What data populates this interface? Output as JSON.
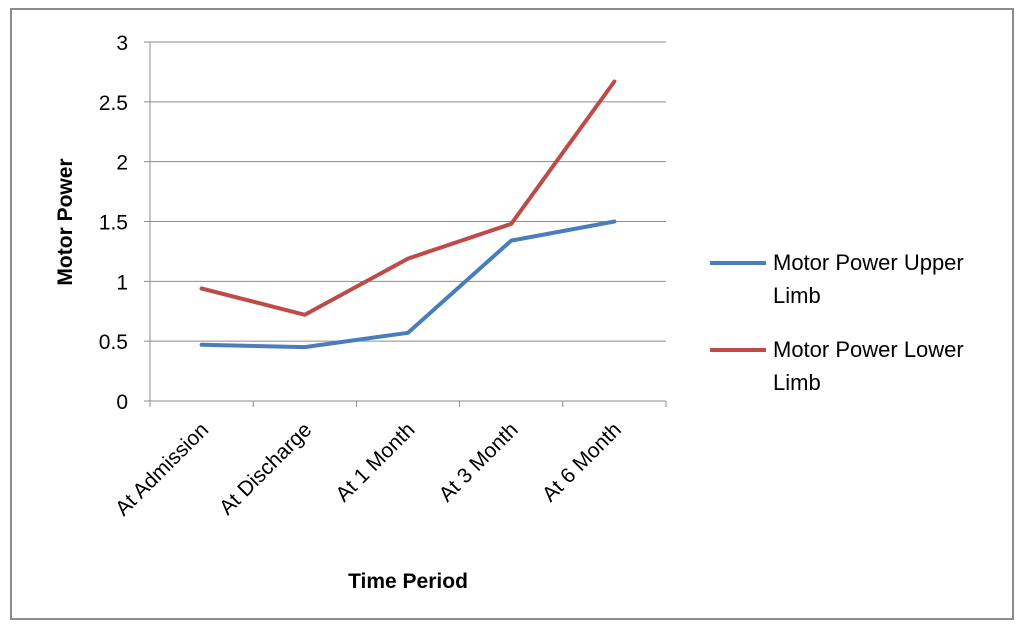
{
  "chart_data": {
    "type": "line",
    "categories": [
      "At Admission",
      "At Discharge",
      "At 1 Month",
      "At 3 Month",
      "At 6 Month"
    ],
    "series": [
      {
        "name": "Motor Power Upper Limb",
        "legend_lines": [
          "Motor Power Upper",
          "Limb"
        ],
        "color": "#4a7ebb",
        "values": [
          0.47,
          0.45,
          0.57,
          1.34,
          1.5
        ]
      },
      {
        "name": "Motor Power Lower Limb",
        "legend_lines": [
          "Motor Power Lower",
          "Limb"
        ],
        "color": "#be4b48",
        "values": [
          0.94,
          0.72,
          1.19,
          1.48,
          2.67
        ]
      }
    ],
    "title": "",
    "xlabel": "Time Period",
    "ylabel": "Motor Power",
    "ylim": [
      0,
      3
    ],
    "yticks": [
      "0",
      "0.5",
      "1",
      "1.5",
      "2",
      "2.5",
      "3"
    ],
    "grid": true,
    "legend_position": "right"
  }
}
